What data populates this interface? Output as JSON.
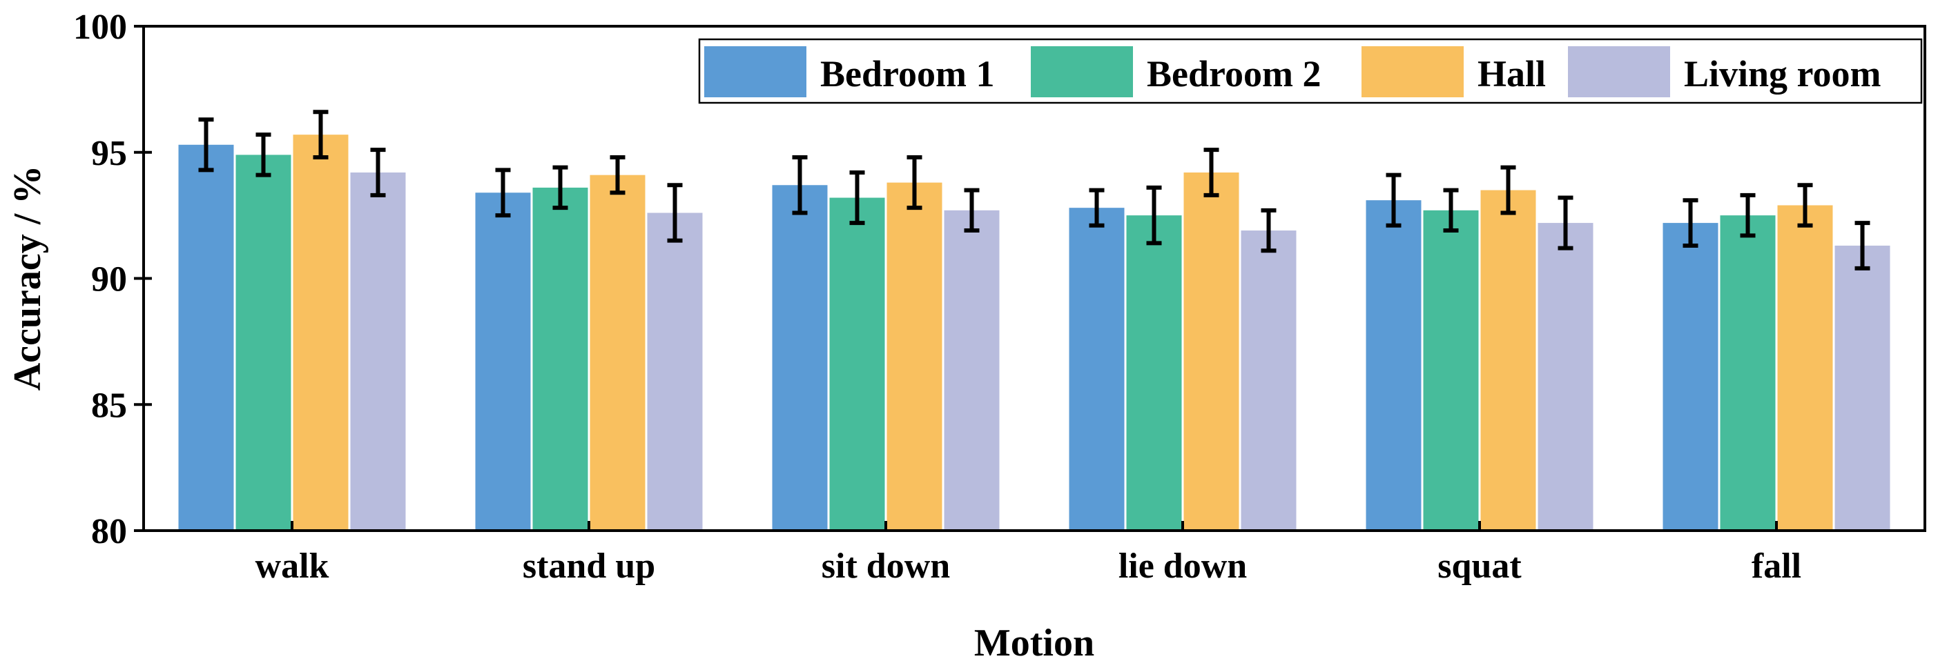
{
  "chart_data": {
    "type": "bar",
    "title": "",
    "xlabel": "Motion",
    "ylabel": "Accuracy / %",
    "ylim": [
      80,
      100
    ],
    "yticks": [
      "80",
      "85",
      "90",
      "95",
      "100"
    ],
    "categories": [
      "walk",
      "stand up",
      "sit down",
      "lie down",
      "squat",
      "fall"
    ],
    "legend_position": "top-right",
    "grid": false,
    "series": [
      {
        "name": "Bedroom 1",
        "color": "#5b9bd5",
        "values": [
          95.3,
          93.4,
          93.7,
          92.8,
          93.1,
          92.2
        ],
        "errors": [
          1.0,
          0.9,
          1.1,
          0.7,
          1.0,
          0.9
        ]
      },
      {
        "name": "Bedroom 2",
        "color": "#47bc9b",
        "values": [
          94.9,
          93.6,
          93.2,
          92.5,
          92.7,
          92.5
        ],
        "errors": [
          0.8,
          0.8,
          1.0,
          1.1,
          0.8,
          0.8
        ]
      },
      {
        "name": "Hall",
        "color": "#f9c05f",
        "values": [
          95.7,
          94.1,
          93.8,
          94.2,
          93.5,
          92.9
        ],
        "errors": [
          0.9,
          0.7,
          1.0,
          0.9,
          0.9,
          0.8
        ]
      },
      {
        "name": "Living room",
        "color": "#b8bcdd",
        "values": [
          94.2,
          92.6,
          92.7,
          91.9,
          92.2,
          91.3
        ],
        "errors": [
          0.9,
          1.1,
          0.8,
          0.8,
          1.0,
          0.9
        ]
      }
    ]
  }
}
